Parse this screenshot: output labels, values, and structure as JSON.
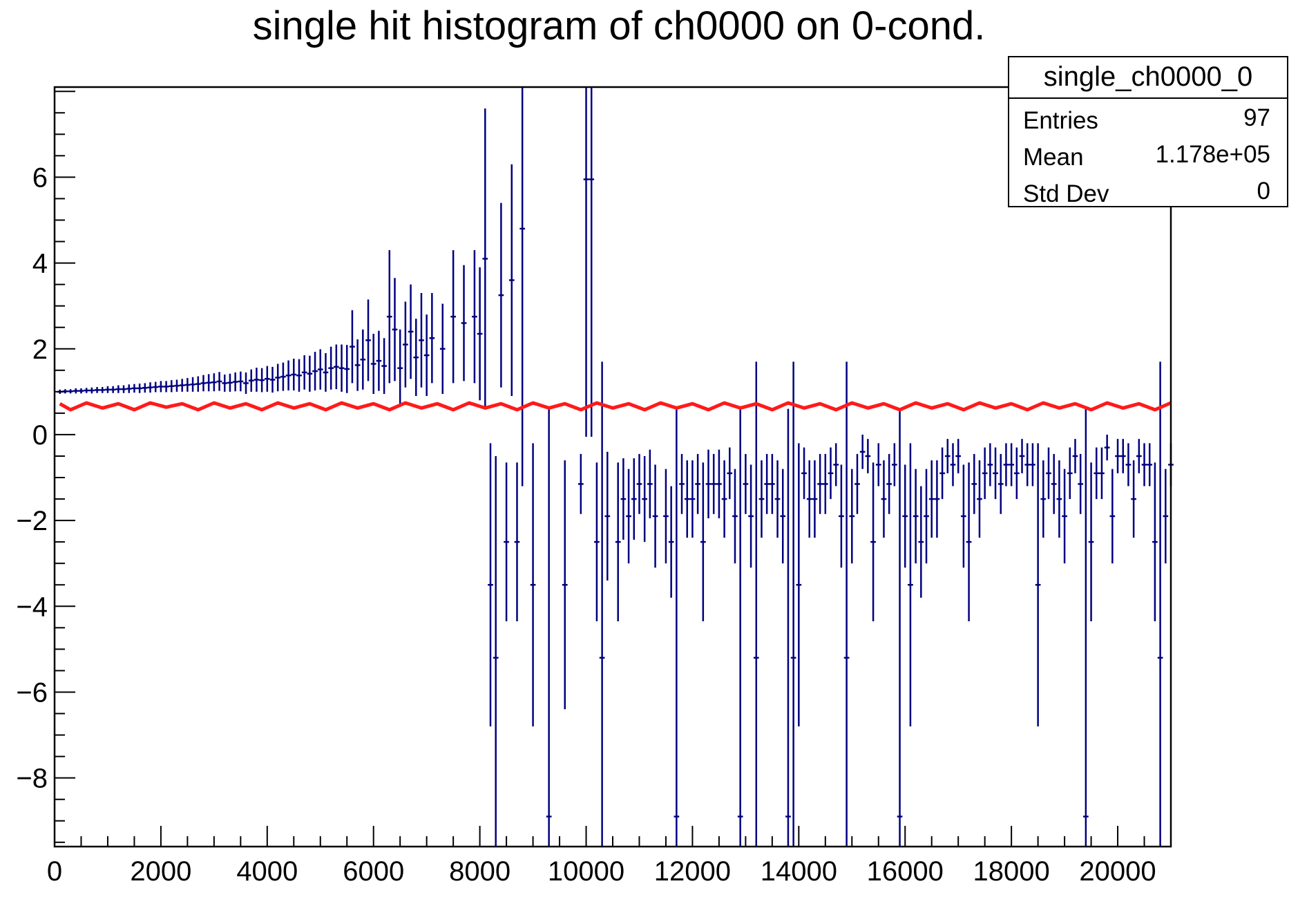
{
  "chart_data": {
    "type": "histogram",
    "title": "single hit histogram of ch0000 on 0-cond.",
    "xlabel": "",
    "ylabel": "",
    "xlim": [
      0,
      21000
    ],
    "ylim": [
      -9.6,
      8.1
    ],
    "x_ticks": [
      0,
      2000,
      4000,
      6000,
      8000,
      10000,
      12000,
      14000,
      16000,
      18000,
      20000
    ],
    "x_tick_labels": [
      "0",
      "2000",
      "4000",
      "6000",
      "8000",
      "10000",
      "12000",
      "14000",
      "16000",
      "18000",
      "20000"
    ],
    "y_ticks": [
      -8,
      -6,
      -4,
      -2,
      0,
      2,
      4,
      6
    ],
    "y_tick_labels": [
      "−8",
      "−6",
      "−4",
      "−2",
      "0",
      "2",
      "4",
      "6"
    ],
    "grid": false,
    "legend": "none",
    "stats_box": {
      "title": "single_ch0000_0",
      "rows": [
        {
          "label": "Entries",
          "value": "97"
        },
        {
          "label": "Mean",
          "value": "1.178e+05"
        },
        {
          "label": "Std Dev",
          "value": "0"
        }
      ]
    },
    "series": [
      {
        "kind": "error_bars",
        "color": "#000080",
        "points": [
          [
            100,
            1.0,
            0.05
          ],
          [
            200,
            1.01,
            0.05
          ],
          [
            300,
            1.01,
            0.05
          ],
          [
            400,
            1.02,
            0.06
          ],
          [
            500,
            1.02,
            0.06
          ],
          [
            600,
            1.03,
            0.06
          ],
          [
            700,
            1.03,
            0.07
          ],
          [
            800,
            1.04,
            0.07
          ],
          [
            900,
            1.04,
            0.07
          ],
          [
            1000,
            1.05,
            0.08
          ],
          [
            1100,
            1.05,
            0.08
          ],
          [
            1200,
            1.06,
            0.09
          ],
          [
            1300,
            1.06,
            0.09
          ],
          [
            1400,
            1.07,
            0.1
          ],
          [
            1500,
            1.08,
            0.1
          ],
          [
            1600,
            1.08,
            0.11
          ],
          [
            1700,
            1.09,
            0.11
          ],
          [
            1800,
            1.1,
            0.12
          ],
          [
            1900,
            1.11,
            0.12
          ],
          [
            2000,
            1.12,
            0.13
          ],
          [
            2100,
            1.12,
            0.13
          ],
          [
            2200,
            1.13,
            0.14
          ],
          [
            2300,
            1.14,
            0.14
          ],
          [
            2400,
            1.15,
            0.15
          ],
          [
            2500,
            1.16,
            0.16
          ],
          [
            2600,
            1.17,
            0.17
          ],
          [
            2700,
            1.18,
            0.18
          ],
          [
            2800,
            1.2,
            0.19
          ],
          [
            2900,
            1.21,
            0.2
          ],
          [
            3000,
            1.22,
            0.21
          ],
          [
            3100,
            1.24,
            0.22
          ],
          [
            3200,
            1.2,
            0.2
          ],
          [
            3300,
            1.21,
            0.21
          ],
          [
            3400,
            1.23,
            0.22
          ],
          [
            3500,
            1.24,
            0.23
          ],
          [
            3600,
            1.2,
            0.25
          ],
          [
            3700,
            1.26,
            0.26
          ],
          [
            3800,
            1.28,
            0.28
          ],
          [
            3900,
            1.27,
            0.28
          ],
          [
            4000,
            1.3,
            0.3
          ],
          [
            4100,
            1.28,
            0.3
          ],
          [
            4200,
            1.33,
            0.32
          ],
          [
            4300,
            1.35,
            0.33
          ],
          [
            4400,
            1.38,
            0.35
          ],
          [
            4500,
            1.4,
            0.37
          ],
          [
            4600,
            1.38,
            0.38
          ],
          [
            4700,
            1.45,
            0.4
          ],
          [
            4800,
            1.42,
            0.42
          ],
          [
            4900,
            1.48,
            0.45
          ],
          [
            5000,
            1.52,
            0.47
          ],
          [
            5100,
            1.45,
            0.45
          ],
          [
            5200,
            1.55,
            0.5
          ],
          [
            5300,
            1.58,
            0.52
          ],
          [
            5400,
            1.55,
            0.55
          ],
          [
            5500,
            1.53,
            0.56
          ],
          [
            5600,
            2.05,
            0.85
          ],
          [
            5700,
            1.62,
            0.6
          ],
          [
            5800,
            1.75,
            0.7
          ],
          [
            5900,
            2.2,
            0.95
          ],
          [
            6000,
            1.65,
            0.7
          ],
          [
            6100,
            1.72,
            0.7
          ],
          [
            6200,
            1.6,
            0.65
          ],
          [
            6300,
            2.75,
            1.55
          ],
          [
            6400,
            2.45,
            1.2
          ],
          [
            6500,
            1.55,
            0.9
          ],
          [
            6600,
            2.1,
            1.0
          ],
          [
            6700,
            2.4,
            1.1
          ],
          [
            6800,
            1.8,
            0.9
          ],
          [
            6900,
            2.2,
            1.1
          ],
          [
            7000,
            1.85,
            0.95
          ],
          [
            7100,
            2.25,
            1.05
          ],
          [
            7300,
            2.0,
            1.05
          ],
          [
            7500,
            2.75,
            1.55
          ],
          [
            7700,
            2.6,
            1.35
          ],
          [
            7900,
            2.75,
            1.55
          ],
          [
            8000,
            2.35,
            1.55
          ],
          [
            8100,
            4.1,
            3.5
          ],
          [
            8200,
            -3.5,
            3.3
          ],
          [
            8300,
            -5.2,
            4.7
          ],
          [
            8400,
            3.25,
            2.15
          ],
          [
            8500,
            -2.5,
            1.85
          ],
          [
            8600,
            3.6,
            2.7
          ],
          [
            8700,
            -2.5,
            1.85
          ],
          [
            8800,
            4.8,
            6.0
          ],
          [
            9000,
            -3.5,
            3.3
          ],
          [
            9300,
            -8.9,
            9.5
          ],
          [
            9600,
            -3.5,
            2.9
          ],
          [
            9900,
            -1.15,
            0.7
          ],
          [
            10000,
            5.95,
            6.0
          ],
          [
            10100,
            5.95,
            6.0
          ],
          [
            10200,
            -2.5,
            1.85
          ],
          [
            10300,
            -5.2,
            6.9
          ],
          [
            10400,
            -1.9,
            1.5
          ],
          [
            10600,
            -2.5,
            1.85
          ],
          [
            10700,
            -1.5,
            0.95
          ],
          [
            10800,
            -1.9,
            1.1
          ],
          [
            10900,
            -1.5,
            0.95
          ],
          [
            11000,
            -1.15,
            0.7
          ],
          [
            11100,
            -1.5,
            1.0
          ],
          [
            11200,
            -1.15,
            0.8
          ],
          [
            11300,
            -1.9,
            1.2
          ],
          [
            11500,
            -1.9,
            1.1
          ],
          [
            11600,
            -2.5,
            1.3
          ],
          [
            11700,
            -8.9,
            9.5
          ],
          [
            11800,
            -1.15,
            0.7
          ],
          [
            11900,
            -1.5,
            0.9
          ],
          [
            12000,
            -1.5,
            0.9
          ],
          [
            12100,
            -1.15,
            0.7
          ],
          [
            12200,
            -2.5,
            1.85
          ],
          [
            12300,
            -1.15,
            0.8
          ],
          [
            12400,
            -1.15,
            0.7
          ],
          [
            12500,
            -1.15,
            0.8
          ],
          [
            12600,
            -1.5,
            0.9
          ],
          [
            12700,
            -0.9,
            0.6
          ],
          [
            12800,
            -1.9,
            1.1
          ],
          [
            12900,
            -8.9,
            9.5
          ],
          [
            13000,
            -1.15,
            0.7
          ],
          [
            13100,
            -1.9,
            1.2
          ],
          [
            13200,
            -5.2,
            6.9
          ],
          [
            13300,
            -1.5,
            0.9
          ],
          [
            13400,
            -1.15,
            0.7
          ],
          [
            13500,
            -1.15,
            0.7
          ],
          [
            13600,
            -1.5,
            0.9
          ],
          [
            13700,
            -1.9,
            1.1
          ],
          [
            13800,
            -8.9,
            9.5
          ],
          [
            13900,
            -5.2,
            6.9
          ],
          [
            14000,
            -3.5,
            3.3
          ],
          [
            14100,
            -0.9,
            0.6
          ],
          [
            14200,
            -1.5,
            0.9
          ],
          [
            14300,
            -1.5,
            0.9
          ],
          [
            14400,
            -1.15,
            0.7
          ],
          [
            14500,
            -1.15,
            0.7
          ],
          [
            14600,
            -0.9,
            0.6
          ],
          [
            14700,
            -0.7,
            0.5
          ],
          [
            14800,
            -1.9,
            1.2
          ],
          [
            14900,
            -5.2,
            6.9
          ],
          [
            15000,
            -1.9,
            1.1
          ],
          [
            15100,
            -1.15,
            0.7
          ],
          [
            15200,
            -0.4,
            0.4
          ],
          [
            15300,
            -0.5,
            0.4
          ],
          [
            15400,
            -2.5,
            1.85
          ],
          [
            15500,
            -0.7,
            0.5
          ],
          [
            15600,
            -1.5,
            0.9
          ],
          [
            15700,
            -1.15,
            0.7
          ],
          [
            15800,
            -0.7,
            0.5
          ],
          [
            15900,
            -8.9,
            9.5
          ],
          [
            16000,
            -1.9,
            1.2
          ],
          [
            16100,
            -3.5,
            3.3
          ],
          [
            16200,
            -1.9,
            1.1
          ],
          [
            16300,
            -2.5,
            1.3
          ],
          [
            16400,
            -1.9,
            1.1
          ],
          [
            16500,
            -1.5,
            0.9
          ],
          [
            16600,
            -1.5,
            0.9
          ],
          [
            16700,
            -0.9,
            0.6
          ],
          [
            16800,
            -0.5,
            0.4
          ],
          [
            16900,
            -0.7,
            0.5
          ],
          [
            17000,
            -0.5,
            0.4
          ],
          [
            17100,
            -1.9,
            1.2
          ],
          [
            17200,
            -2.5,
            1.85
          ],
          [
            17300,
            -1.15,
            0.7
          ],
          [
            17400,
            -1.5,
            0.9
          ],
          [
            17500,
            -0.9,
            0.6
          ],
          [
            17600,
            -0.7,
            0.5
          ],
          [
            17700,
            -0.9,
            0.6
          ],
          [
            17800,
            -1.15,
            0.7
          ],
          [
            17900,
            -0.7,
            0.5
          ],
          [
            18000,
            -0.7,
            0.5
          ],
          [
            18100,
            -0.9,
            0.6
          ],
          [
            18200,
            -0.5,
            0.4
          ],
          [
            18300,
            -0.7,
            0.5
          ],
          [
            18400,
            -0.7,
            0.5
          ],
          [
            18500,
            -3.5,
            3.3
          ],
          [
            18600,
            -1.5,
            0.9
          ],
          [
            18700,
            -0.9,
            0.6
          ],
          [
            18800,
            -1.15,
            0.7
          ],
          [
            18900,
            -1.5,
            0.9
          ],
          [
            19000,
            -1.9,
            1.1
          ],
          [
            19100,
            -0.9,
            0.6
          ],
          [
            19200,
            -0.5,
            0.4
          ],
          [
            19300,
            -1.15,
            0.7
          ],
          [
            19400,
            -8.9,
            9.5
          ],
          [
            19500,
            -2.5,
            1.85
          ],
          [
            19600,
            -0.9,
            0.6
          ],
          [
            19700,
            -0.9,
            0.6
          ],
          [
            19800,
            -0.3,
            0.3
          ],
          [
            19900,
            -1.9,
            1.1
          ],
          [
            20000,
            -0.5,
            0.4
          ],
          [
            20100,
            -0.5,
            0.4
          ],
          [
            20200,
            -0.7,
            0.5
          ],
          [
            20300,
            -1.5,
            0.9
          ],
          [
            20400,
            -0.5,
            0.4
          ],
          [
            20500,
            -0.7,
            0.5
          ],
          [
            20600,
            -0.7,
            0.5
          ],
          [
            20700,
            -2.5,
            1.85
          ],
          [
            20800,
            -5.2,
            6.9
          ],
          [
            20900,
            -1.9,
            1.1
          ],
          [
            21000,
            -0.7,
            0.5
          ]
        ]
      },
      {
        "kind": "line",
        "color": "#ff1a1a",
        "x": [
          100,
          300,
          600,
          900,
          1200,
          1500,
          1800,
          2100,
          2400,
          2700,
          3000,
          3300,
          3600,
          3900,
          4200,
          4500,
          4800,
          5100,
          5400,
          5700,
          6000,
          6300,
          6600,
          6900,
          7200,
          7500,
          7800,
          8100,
          8400,
          8700,
          9000,
          9300,
          9600,
          9900,
          10200,
          10500,
          10800,
          11100,
          11400,
          11700,
          12000,
          12300,
          12600,
          12900,
          13200,
          13500,
          13800,
          14100,
          14400,
          14700,
          15000,
          15300,
          15600,
          15900,
          16200,
          16500,
          16800,
          17100,
          17400,
          17700,
          18000,
          18300,
          18600,
          18900,
          19200,
          19500,
          19800,
          20100,
          20400,
          20700,
          21000
        ],
        "y": [
          0.72,
          0.58,
          0.74,
          0.62,
          0.72,
          0.58,
          0.74,
          0.64,
          0.72,
          0.58,
          0.74,
          0.62,
          0.72,
          0.58,
          0.74,
          0.62,
          0.72,
          0.58,
          0.74,
          0.62,
          0.72,
          0.58,
          0.74,
          0.62,
          0.72,
          0.58,
          0.74,
          0.62,
          0.72,
          0.58,
          0.74,
          0.62,
          0.72,
          0.58,
          0.74,
          0.62,
          0.72,
          0.58,
          0.74,
          0.62,
          0.72,
          0.58,
          0.74,
          0.62,
          0.72,
          0.58,
          0.74,
          0.62,
          0.72,
          0.58,
          0.74,
          0.62,
          0.72,
          0.58,
          0.74,
          0.62,
          0.72,
          0.58,
          0.74,
          0.62,
          0.72,
          0.58,
          0.74,
          0.62,
          0.72,
          0.58,
          0.74,
          0.62,
          0.72,
          0.58,
          0.74
        ]
      }
    ]
  }
}
